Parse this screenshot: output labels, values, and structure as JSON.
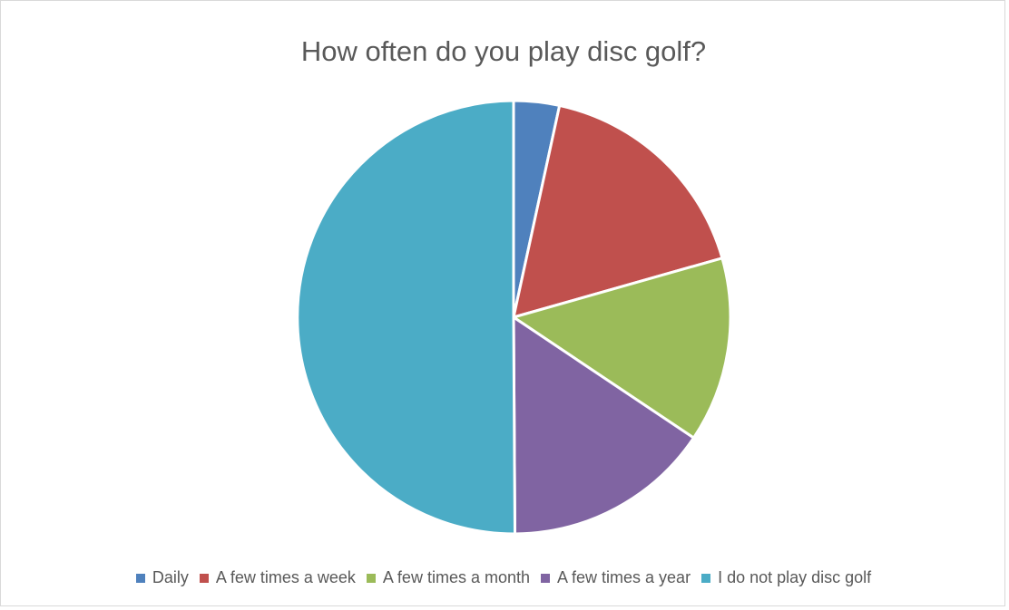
{
  "chart_data": {
    "type": "pie",
    "title": "How often do you play disc golf?",
    "categories": [
      "Daily",
      "A few times a week",
      "A few times a month",
      "A few times a year",
      "I do not play disc golf"
    ],
    "values": [
      3.4,
      17.2,
      13.8,
      15.5,
      50.1
    ],
    "colors": [
      "#4f81bd",
      "#c0504d",
      "#9bbb59",
      "#8064a2",
      "#4bacc6"
    ],
    "legend_position": "bottom"
  }
}
